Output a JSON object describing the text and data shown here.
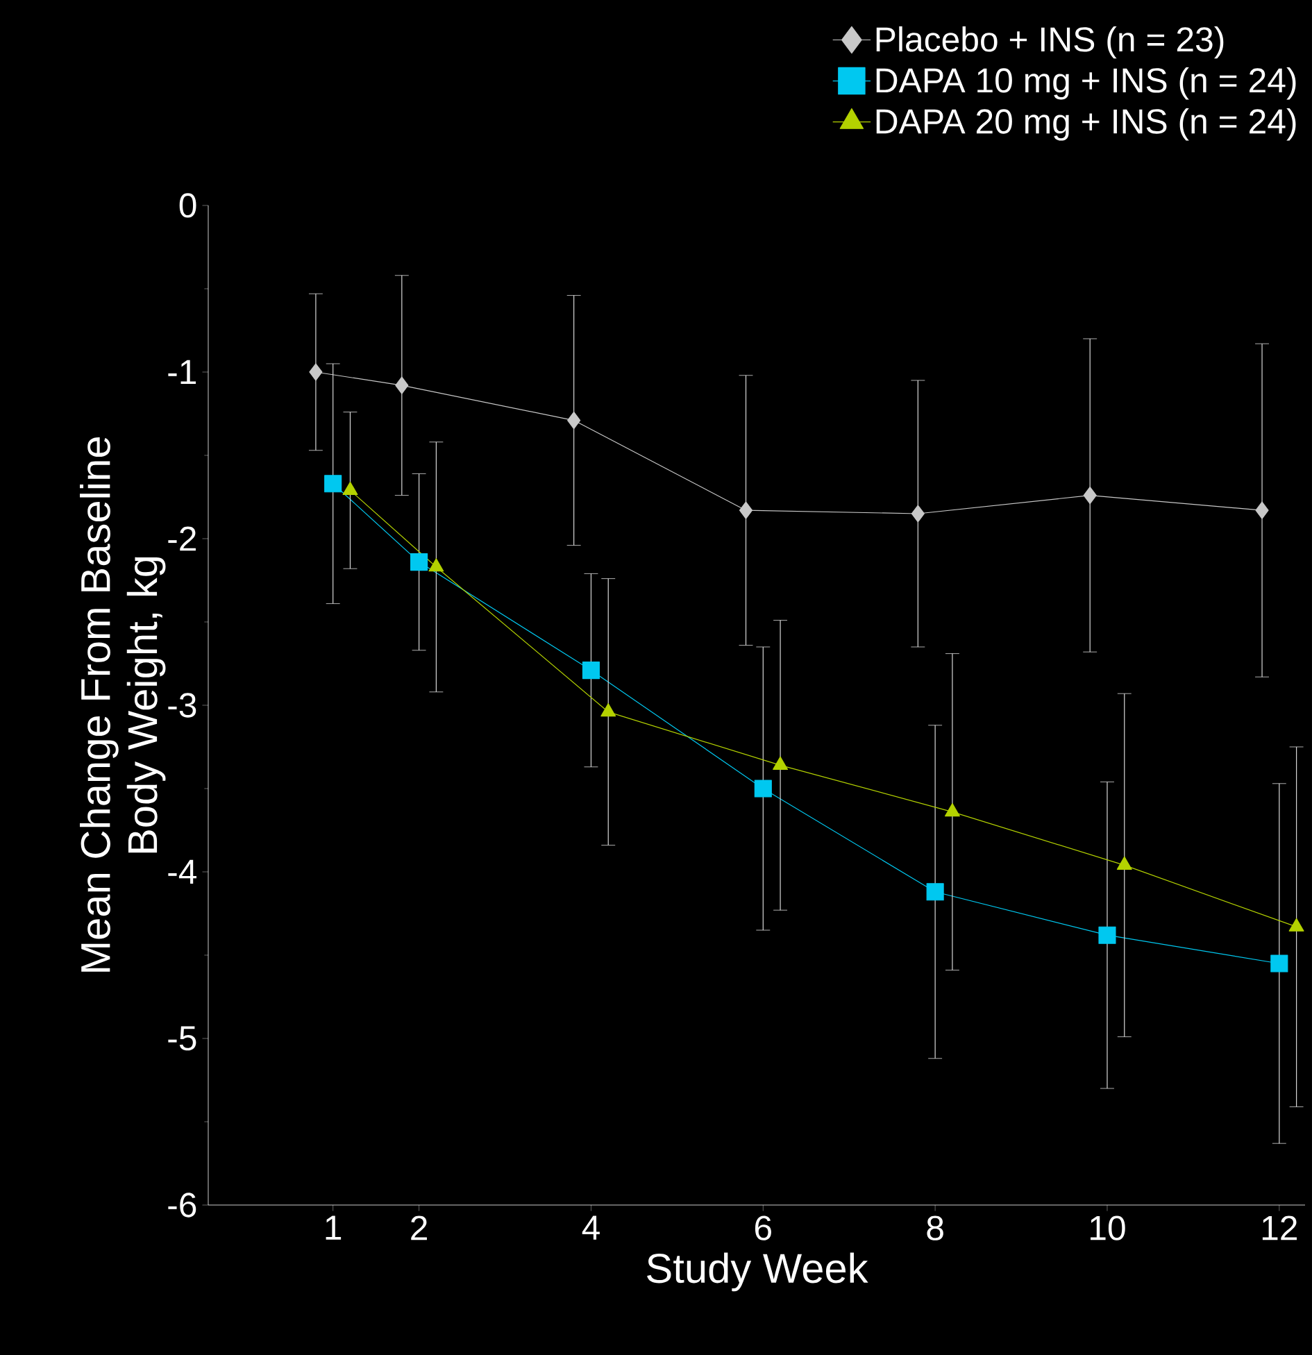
{
  "chart_data": {
    "type": "line",
    "xlabel": "Study Week",
    "ylabel": "Mean Change From Baseline\nBody Weight, kg",
    "xlim": [
      -0.45,
      12.3
    ],
    "ylim": [
      -6,
      0
    ],
    "xticks": [
      1,
      2,
      4,
      6,
      8,
      10,
      12
    ],
    "yticks": [
      0,
      -1,
      -2,
      -3,
      -4,
      -5,
      -6
    ],
    "grid": false,
    "legend": "top right",
    "line_style": "solid",
    "series": [
      {
        "name": "Placebo + INS (n = 23)",
        "color": "#c8c8c8",
        "marker": "diamond",
        "x": [
          0.8,
          1.8,
          3.8,
          5.8,
          7.8,
          9.8,
          11.8
        ],
        "values": [
          -1.0,
          -1.08,
          -1.29,
          -1.83,
          -1.85,
          -1.74,
          -1.83
        ],
        "errors": [
          0.47,
          0.66,
          0.75,
          0.81,
          0.8,
          0.94,
          1.0
        ]
      },
      {
        "name": "DAPA 10 mg + INS (n = 24)",
        "color": "#00c8f0",
        "marker": "square",
        "x": [
          1,
          2,
          4,
          6,
          8,
          10,
          12
        ],
        "values": [
          -1.67,
          -2.14,
          -2.79,
          -3.5,
          -4.12,
          -4.38,
          -4.55
        ],
        "errors": [
          0.72,
          0.53,
          0.58,
          0.85,
          1.0,
          0.92,
          1.08
        ]
      },
      {
        "name": "DAPA 20 mg + INS (n = 24)",
        "color": "#b4d200",
        "marker": "triangle",
        "x": [
          1.2,
          2.2,
          4.2,
          6.2,
          8.2,
          10.2,
          12.2
        ],
        "values": [
          -1.71,
          -2.17,
          -3.04,
          -3.36,
          -3.64,
          -3.96,
          -4.33
        ],
        "errors": [
          0.47,
          0.75,
          0.8,
          0.87,
          0.95,
          1.03,
          1.08
        ]
      }
    ]
  }
}
